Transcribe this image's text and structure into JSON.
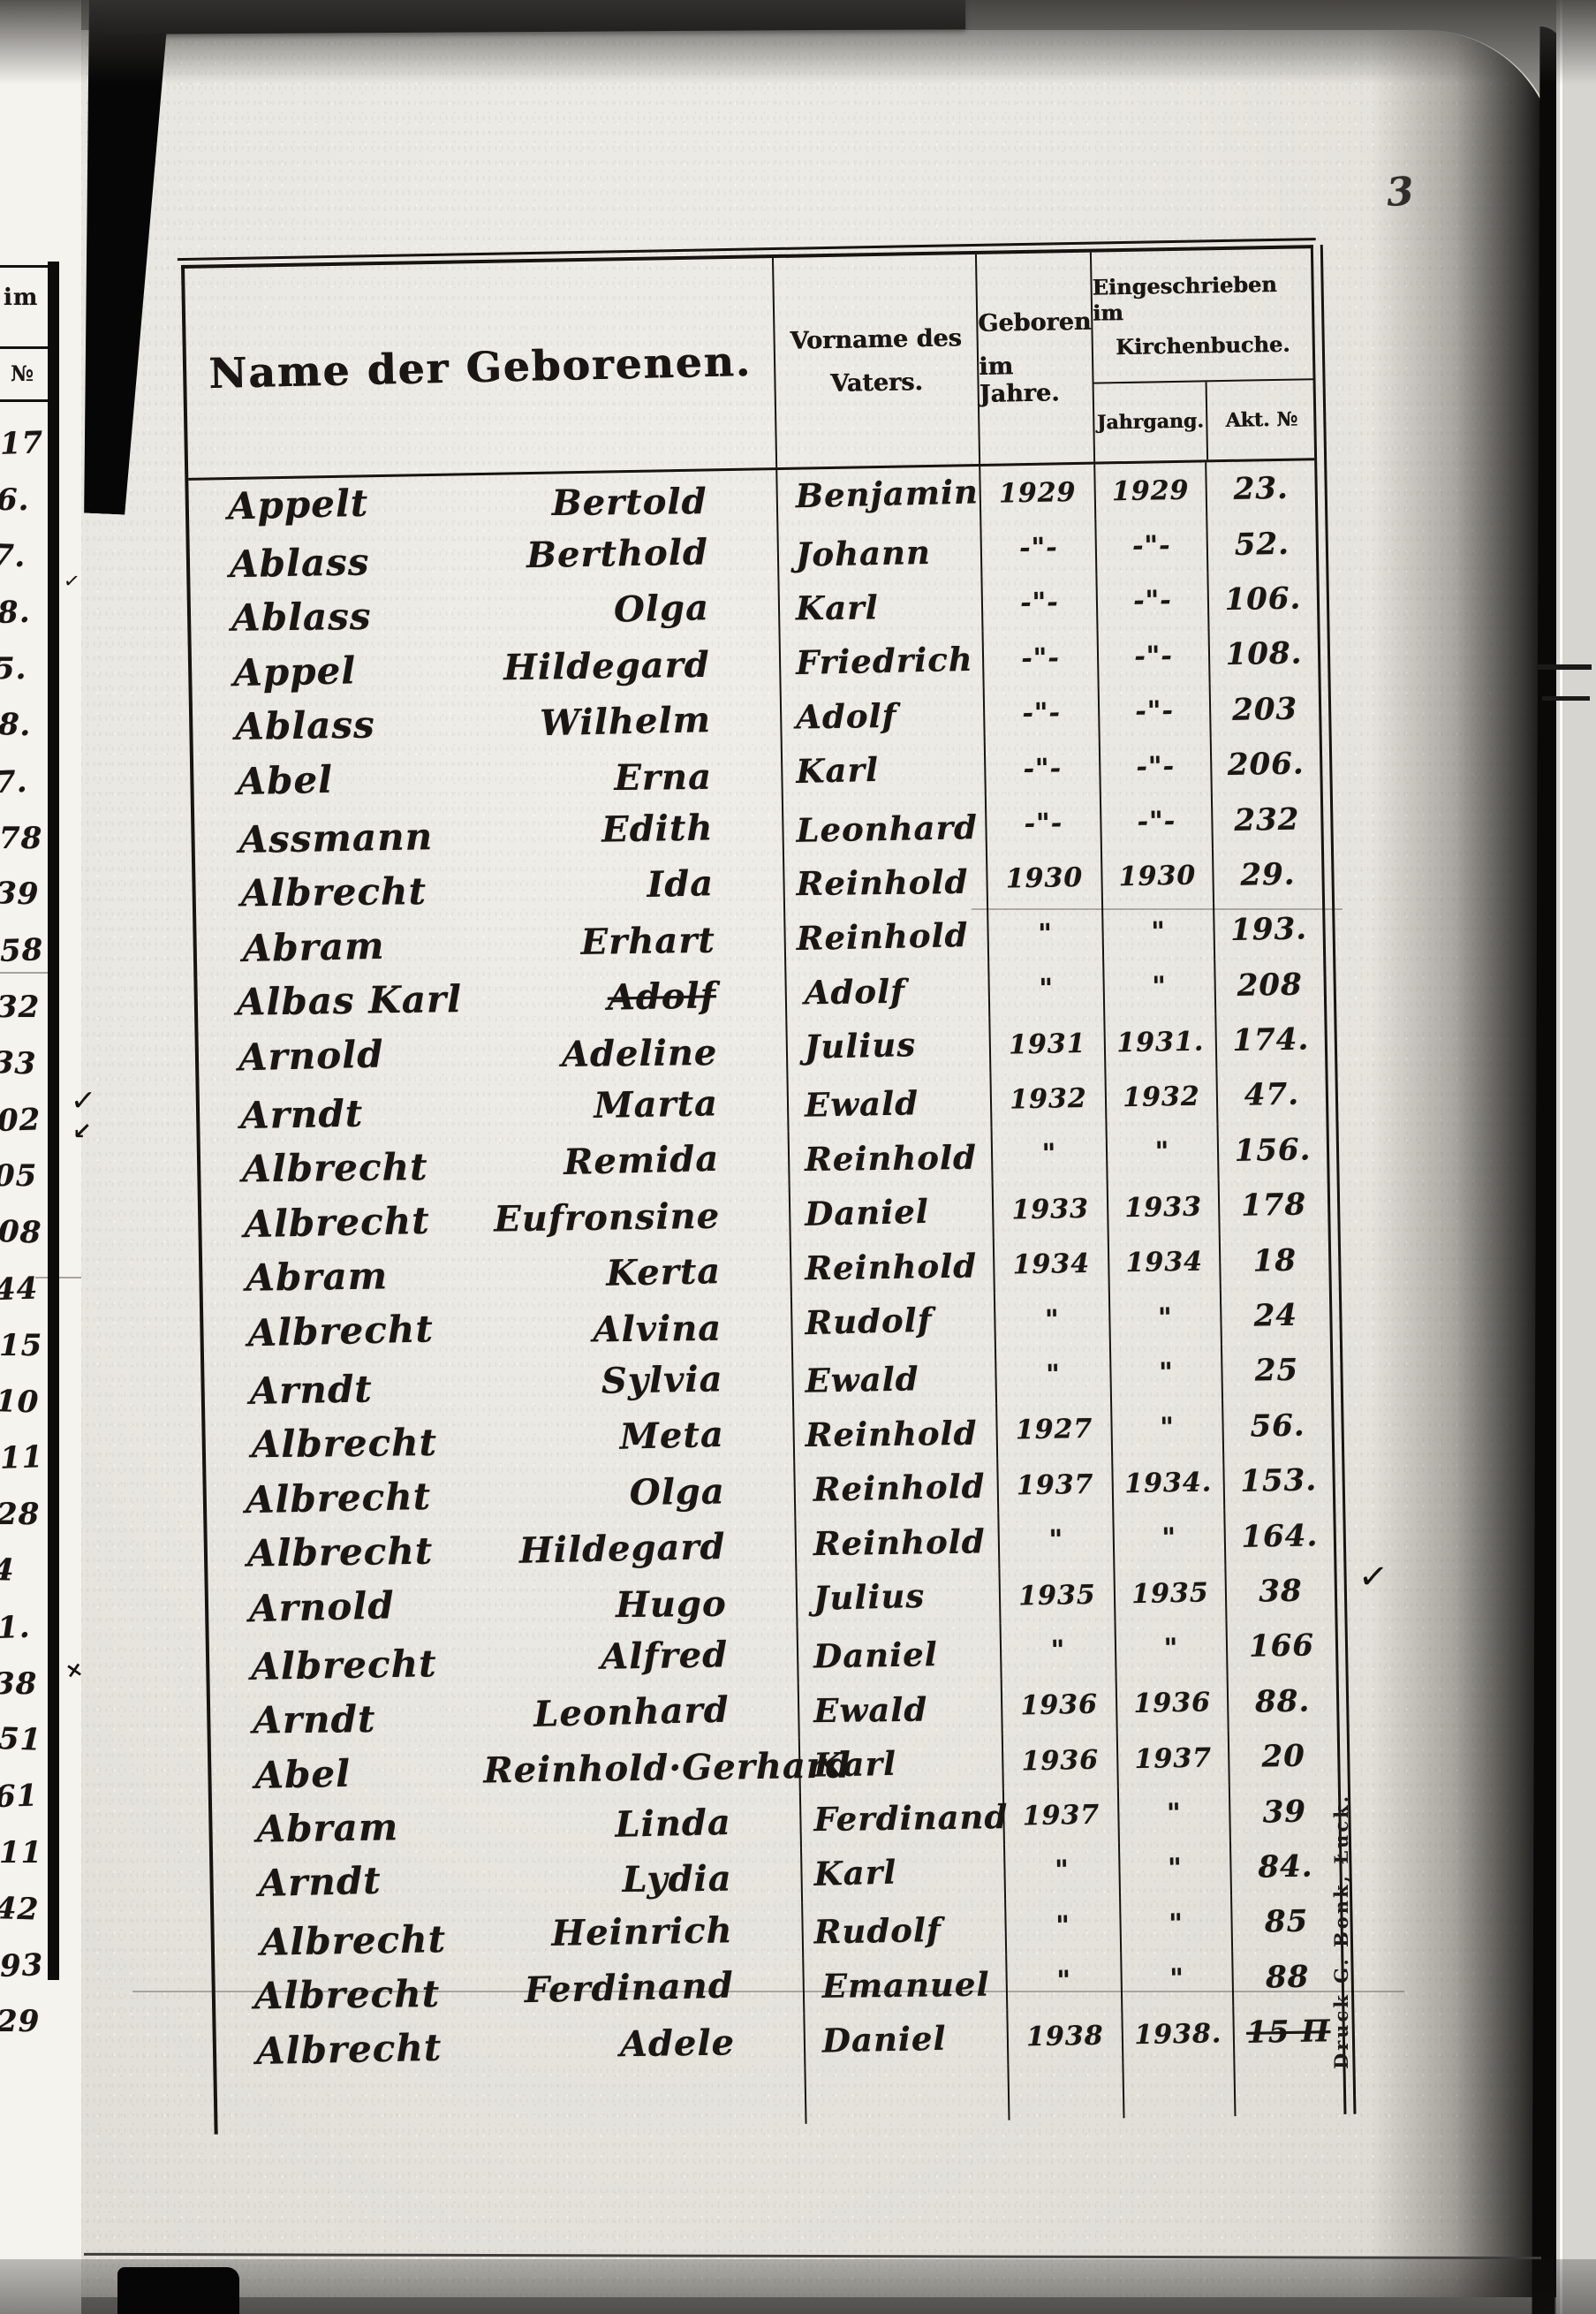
{
  "colors": {
    "ink": "#1a1613",
    "line": "#161310",
    "paper": "#e9e7e1",
    "paper_edge_left": "#f4f3ee",
    "paper_edge_right": "#d6d5d0"
  },
  "scan": {
    "page_number": "3",
    "imprint": "Druck G. Bonk, Łuck.",
    "marks": {
      "check": "✓",
      "arrow": "↙",
      "cross": "×"
    }
  },
  "table": {
    "headers": {
      "name": "Name der Geborenen.",
      "father": [
        "Vorname des",
        "Vaters."
      ],
      "born": [
        "Geboren",
        "im Jahre."
      ],
      "registered": [
        "Eingeschrieben im",
        "Kirchenbuche."
      ],
      "year": "Jahrgang.",
      "akt": "Akt. №"
    },
    "rows": [
      {
        "sur": "Appelt",
        "giv": "Bertold",
        "father": "Benjamin",
        "born": "1929",
        "year": "1929",
        "akt": "23."
      },
      {
        "sur": "Ablass",
        "giv": "Berthold",
        "father": "Johann",
        "born": "-\"-",
        "year": "-\"-",
        "akt": "52."
      },
      {
        "sur": "Ablass",
        "giv": "Olga",
        "father": "Karl",
        "born": "-\"-",
        "year": "-\"-",
        "akt": "106."
      },
      {
        "sur": "Appel",
        "giv": "Hildegard",
        "father": "Friedrich",
        "born": "-\"-",
        "year": "-\"-",
        "akt": "108."
      },
      {
        "sur": "Ablass",
        "giv": "Wilhelm",
        "father": "Adolf",
        "born": "-\"-",
        "year": "-\"-",
        "akt": "203"
      },
      {
        "sur": "Abel",
        "giv": "Erna",
        "father": "Karl",
        "born": "-\"-",
        "year": "-\"-",
        "akt": "206."
      },
      {
        "sur": "Assmann",
        "giv": "Edith",
        "father": "Leonhard",
        "born": "-\"-",
        "year": "-\"-",
        "akt": "232"
      },
      {
        "sur": "Albrecht",
        "giv": "Ida",
        "father": "Reinhold",
        "born": "1930",
        "year": "1930",
        "akt": "29."
      },
      {
        "sur": "Abram",
        "giv": "Erhart",
        "father": "Reinhold",
        "born": "\"",
        "year": "\"",
        "akt": "193."
      },
      {
        "sur": "Albas Karl",
        "giv": "Adolf",
        "struck": true,
        "father": "Adolf",
        "born": "\"",
        "year": "\"",
        "akt": "208"
      },
      {
        "sur": "Arnold",
        "giv": "Adeline",
        "father": "Julius",
        "born": "1931",
        "year": "1931.",
        "akt": "174."
      },
      {
        "sur": "Arndt",
        "giv": "Marta",
        "father": "Ewald",
        "born": "1932",
        "year": "1932",
        "akt": "47."
      },
      {
        "sur": "Albrecht",
        "giv": "Remida",
        "father": "Reinhold",
        "born": "\"",
        "year": "\"",
        "akt": "156."
      },
      {
        "sur": "Albrecht",
        "giv": "Eufronsine",
        "father": "Daniel",
        "born": "1933",
        "year": "1933",
        "akt": "178"
      },
      {
        "sur": "Abram",
        "giv": "Kerta",
        "father": "Reinhold",
        "born": "1934",
        "year": "1934",
        "akt": "18"
      },
      {
        "sur": "Albrecht",
        "giv": "Alvina",
        "father": "Rudolf",
        "born": "\"",
        "year": "\"",
        "akt": "24"
      },
      {
        "sur": "Arndt",
        "giv": "Sylvia",
        "father": "Ewald",
        "born": "\"",
        "year": "\"",
        "akt": "25"
      },
      {
        "sur": "Albrecht",
        "giv": "Meta",
        "father": "Reinhold",
        "born": "1927",
        "year": "\"",
        "akt": "56."
      },
      {
        "sur": "Albrecht",
        "giv": "Olga",
        "father": "Reinhold",
        "born": "1937",
        "year": "1934.",
        "akt": "153."
      },
      {
        "sur": "Albrecht",
        "giv": "Hildegard",
        "father": "Reinhold",
        "born": "\"",
        "year": "\"",
        "akt": "164."
      },
      {
        "sur": "Arnold",
        "giv": "Hugo",
        "father": "Julius",
        "born": "1935",
        "year": "1935",
        "akt": "38"
      },
      {
        "sur": "Albrecht",
        "giv": "Alfred",
        "father": "Daniel",
        "born": "\"",
        "year": "\"",
        "akt": "166"
      },
      {
        "sur": "Arndt",
        "giv": "Leonhard",
        "father": "Ewald",
        "born": "1936",
        "year": "1936",
        "akt": "88."
      },
      {
        "sur": "Abel",
        "giv": "Reinhold·Gerhard",
        "wide": true,
        "father": "Karl",
        "born": "1936",
        "year": "1937",
        "akt": "20"
      },
      {
        "sur": "Abram",
        "giv": "Linda",
        "father": "Ferdinand",
        "born": "1937",
        "year": "\"",
        "akt": "39"
      },
      {
        "sur": "Arndt",
        "giv": "Lydia",
        "father": "Karl",
        "born": "\"",
        "year": "\"",
        "akt": "84."
      },
      {
        "sur": "Albrecht",
        "giv": "Heinrich",
        "father": "Rudolf",
        "born": "\"",
        "year": "\"",
        "akt": "85"
      },
      {
        "sur": "Albrecht",
        "giv": "Ferdinand",
        "father": "Emanuel",
        "born": "\"",
        "year": "\"",
        "akt": "88"
      },
      {
        "sur": "Albrecht",
        "giv": "Adele",
        "father": "Daniel",
        "born": "1938",
        "year": "1938.",
        "akt": "15 Π",
        "akt_struck": true
      }
    ]
  },
  "margin": {
    "header_fragments": [
      "im",
      "№"
    ],
    "numbers": [
      "17.",
      "6.",
      "7.",
      "8.",
      "5.",
      "8.",
      "7.",
      "78.",
      "39",
      "58",
      "32.",
      "33",
      "02",
      "05",
      "08",
      "44",
      "15.",
      "10",
      "11",
      "28",
      "4",
      "1.",
      "38",
      "51",
      "61",
      "11",
      "42",
      "93.",
      "29."
    ]
  }
}
